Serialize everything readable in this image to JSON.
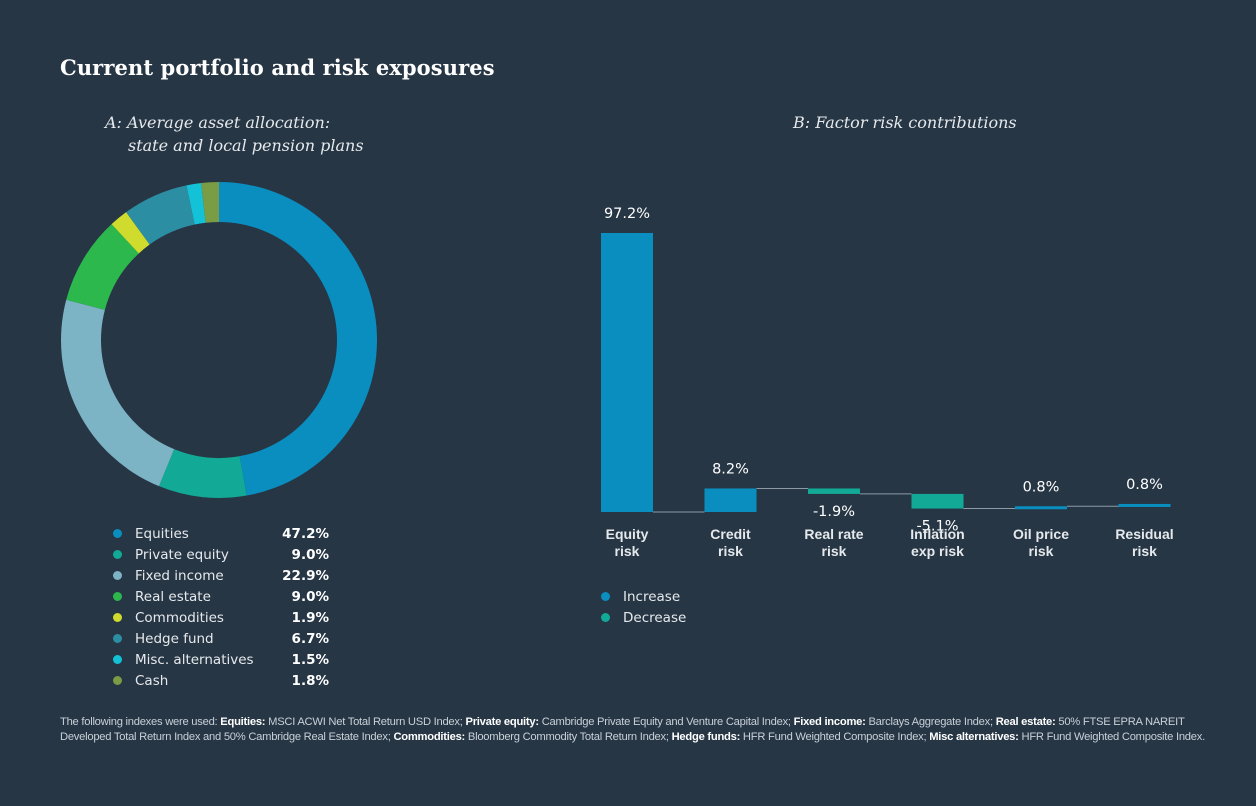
{
  "title": "Current portfolio and risk exposures",
  "colors": {
    "background": "#263645",
    "increase": "#0a8ec0",
    "decrease": "#12a996",
    "connector": "#8d9aa6"
  },
  "chart_data": [
    {
      "type": "pie",
      "subtype": "donut",
      "title_line1": "A: Average asset allocation:",
      "title_line2": "state and local pension plans",
      "slices": [
        {
          "label": "Equities",
          "value": 47.2,
          "display": "47.2%",
          "color": "#0a8ec0"
        },
        {
          "label": "Private equity",
          "value": 9.0,
          "display": "9.0%",
          "color": "#12a996"
        },
        {
          "label": "Fixed income",
          "value": 22.9,
          "display": "22.9%",
          "color": "#7cb3c5"
        },
        {
          "label": "Real estate",
          "value": 9.0,
          "display": "9.0%",
          "color": "#2db84d"
        },
        {
          "label": "Commodities",
          "value": 1.9,
          "display": "1.9%",
          "color": "#cfdc2e"
        },
        {
          "label": "Hedge fund",
          "value": 6.7,
          "display": "6.7%",
          "color": "#2c8ea2"
        },
        {
          "label": "Misc. alternatives",
          "value": 1.5,
          "display": "1.5%",
          "color": "#14c2d8"
        },
        {
          "label": "Cash",
          "value": 1.8,
          "display": "1.8%",
          "color": "#7a9c45"
        }
      ]
    },
    {
      "type": "bar",
      "subtype": "waterfall",
      "title": "B: Factor risk contributions",
      "categories": [
        [
          "Equity",
          "risk"
        ],
        [
          "Credit",
          "risk"
        ],
        [
          "Real rate",
          "risk"
        ],
        [
          "Inflation",
          "exp risk"
        ],
        [
          "Oil price",
          "risk"
        ],
        [
          "Residual",
          "risk"
        ]
      ],
      "values": [
        97.2,
        8.2,
        -1.9,
        -5.1,
        0.8,
        0.8
      ],
      "labels": [
        "97.2%",
        "8.2%",
        "-1.9%",
        "-5.1%",
        "0.8%",
        "0.8%"
      ],
      "legend": [
        "Increase",
        "Decrease"
      ]
    }
  ],
  "footnote": [
    {
      "t": "The following indexes were used: "
    },
    {
      "t": "Equities:",
      "b": true
    },
    {
      "t": " MSCI ACWI Net Total Return USD Index; "
    },
    {
      "t": "Private equity:",
      "b": true
    },
    {
      "t": " Cambridge Private Equity and Venture Capital Index; "
    },
    {
      "t": "Fixed income:",
      "b": true
    },
    {
      "t": " Barclays Aggregate Index; "
    },
    {
      "t": "Real estate:",
      "b": true
    },
    {
      "t": " 50% FTSE EPRA NAREIT Developed Total Return Index and 50% Cambridge Real Estate Index; "
    },
    {
      "t": "Commodities:",
      "b": true
    },
    {
      "t": " Bloomberg Commodity Total Return Index; "
    },
    {
      "t": "Hedge funds:",
      "b": true
    },
    {
      "t": " HFR Fund Weighted Composite Index; "
    },
    {
      "t": "Misc alternatives:",
      "b": true
    },
    {
      "t": " HFR Fund Weighted Composite Index."
    }
  ]
}
